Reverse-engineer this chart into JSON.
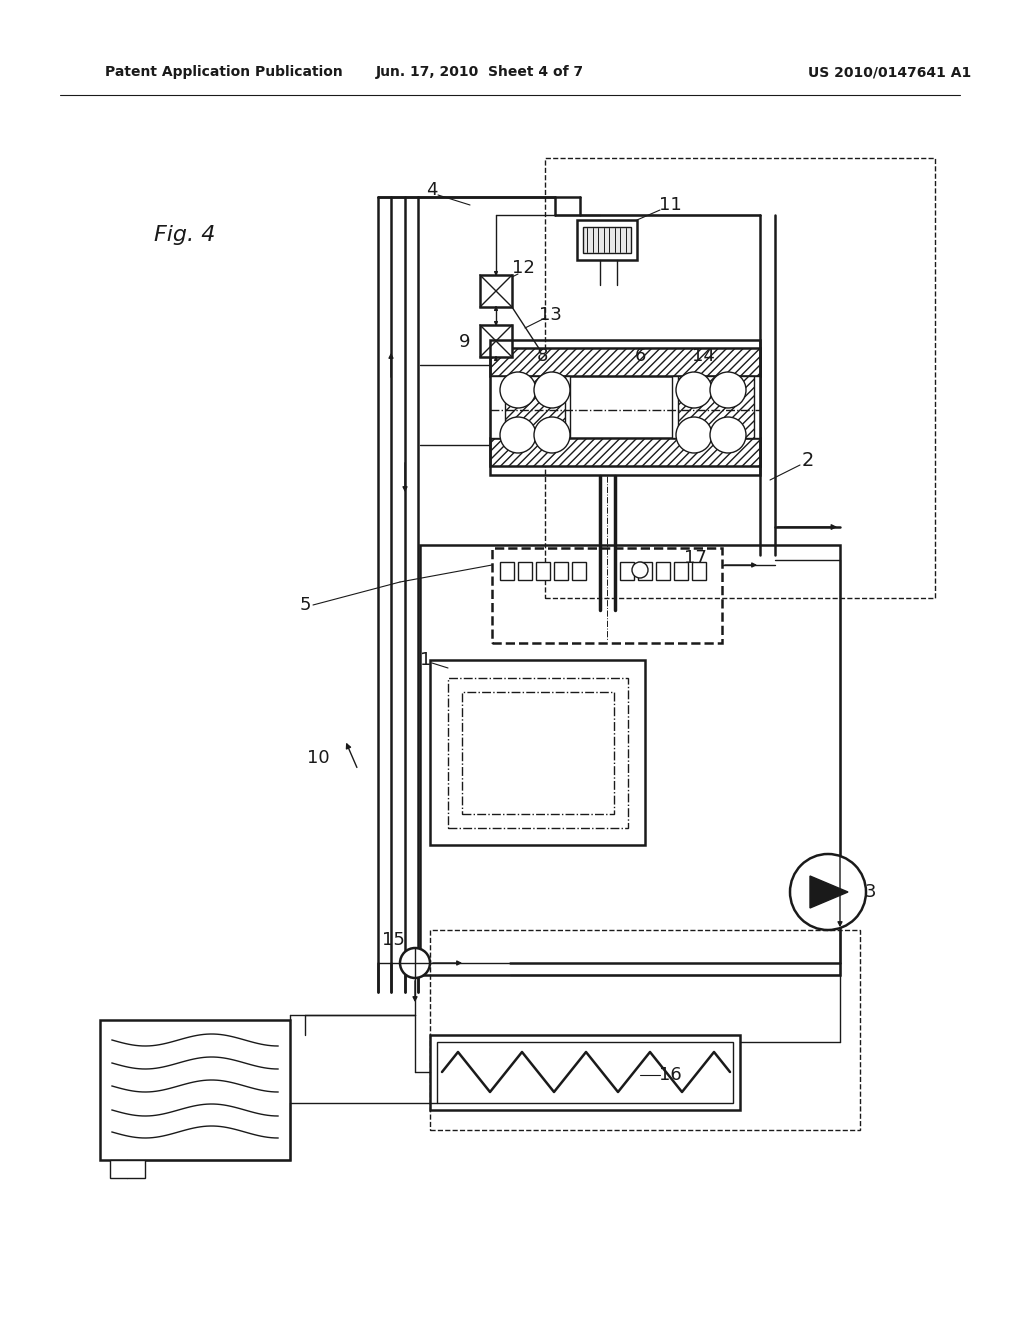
{
  "bg_color": "#ffffff",
  "line_color": "#1a1a1a",
  "header_left": "Patent Application Publication",
  "header_mid": "Jun. 17, 2010  Sheet 4 of 7",
  "header_right": "US 2010/0147641 A1"
}
